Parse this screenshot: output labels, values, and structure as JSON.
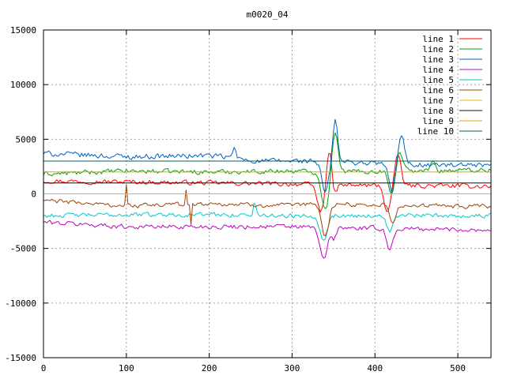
{
  "chart_data": {
    "type": "line",
    "title": "m0020_04",
    "xlabel": "",
    "ylabel": "",
    "xlim": [
      0,
      540
    ],
    "ylim": [
      -15000,
      15000
    ],
    "xticks": [
      0,
      100,
      200,
      300,
      400,
      500
    ],
    "yticks": [
      -15000,
      -10000,
      -5000,
      0,
      5000,
      10000,
      15000
    ],
    "grid": true,
    "legend_position": "top-right",
    "series": [
      {
        "name": "line 1",
        "color": "#ff0000",
        "kind": "noisy",
        "base": [
          [
            0,
            1200
          ],
          [
            100,
            1100
          ],
          [
            200,
            1000
          ],
          [
            300,
            900
          ],
          [
            330,
            800
          ],
          [
            540,
            700
          ]
        ],
        "noise": 300,
        "spikes": [
          [
            335,
            -2500,
            6
          ],
          [
            345,
            3500,
            5
          ],
          [
            350,
            -1500,
            4
          ],
          [
            415,
            -2500,
            5
          ],
          [
            428,
            2800,
            5
          ]
        ]
      },
      {
        "name": "line 2",
        "color": "#00a000",
        "kind": "noisy",
        "base": [
          [
            0,
            1800
          ],
          [
            100,
            2100
          ],
          [
            200,
            2000
          ],
          [
            300,
            2100
          ],
          [
            330,
            2000
          ],
          [
            540,
            2200
          ]
        ],
        "noise": 300,
        "spikes": [
          [
            340,
            -3500,
            6
          ],
          [
            352,
            3800,
            5
          ],
          [
            420,
            -2000,
            5
          ],
          [
            430,
            1800,
            5
          ],
          [
            470,
            1000,
            3
          ]
        ]
      },
      {
        "name": "line 3",
        "color": "#0060c0",
        "kind": "noisy",
        "base": [
          [
            0,
            3700
          ],
          [
            100,
            3400
          ],
          [
            200,
            3500
          ],
          [
            260,
            3000
          ],
          [
            330,
            3000
          ],
          [
            400,
            2800
          ],
          [
            540,
            2500
          ]
        ],
        "noise": 350,
        "spikes": [
          [
            230,
            900,
            3
          ],
          [
            340,
            -2800,
            6
          ],
          [
            352,
            4000,
            4
          ],
          [
            420,
            -2500,
            5
          ],
          [
            432,
            2500,
            5
          ]
        ]
      },
      {
        "name": "line 4",
        "color": "#c000c0",
        "kind": "noisy",
        "base": [
          [
            0,
            -2600
          ],
          [
            100,
            -3000
          ],
          [
            200,
            -3000
          ],
          [
            300,
            -3000
          ],
          [
            330,
            -3100
          ],
          [
            540,
            -3300
          ]
        ],
        "noise": 300,
        "spikes": [
          [
            338,
            -3000,
            6
          ],
          [
            350,
            -1000,
            4
          ],
          [
            418,
            -2000,
            5
          ]
        ]
      },
      {
        "name": "line 5",
        "color": "#00c8c8",
        "kind": "noisy",
        "base": [
          [
            0,
            -2000
          ],
          [
            100,
            -1900
          ],
          [
            200,
            -1900
          ],
          [
            300,
            -2000
          ],
          [
            330,
            -2000
          ],
          [
            540,
            -2000
          ]
        ],
        "noise": 280,
        "spikes": [
          [
            255,
            1300,
            2
          ],
          [
            338,
            -2200,
            6
          ],
          [
            418,
            -1500,
            5
          ]
        ]
      },
      {
        "name": "line 6",
        "color": "#a04000",
        "kind": "noisy",
        "base": [
          [
            0,
            -600
          ],
          [
            100,
            -1100
          ],
          [
            200,
            -900
          ],
          [
            300,
            -1100
          ],
          [
            330,
            -900
          ],
          [
            540,
            -1200
          ]
        ],
        "noise": 280,
        "spikes": [
          [
            100,
            1800,
            1
          ],
          [
            172,
            1500,
            1
          ],
          [
            178,
            -2000,
            1
          ],
          [
            340,
            -3000,
            6
          ],
          [
            422,
            -1800,
            5
          ]
        ]
      },
      {
        "name": "line 7",
        "color": "#e0c000",
        "kind": "flat",
        "y": 0
      },
      {
        "name": "line 8",
        "color": "#101010",
        "kind": "flat",
        "y": 1000
      },
      {
        "name": "line 9",
        "color": "#f0a000",
        "kind": "flat",
        "y": 2000
      },
      {
        "name": "line 10",
        "color": "#006060",
        "kind": "flat",
        "y": 3000
      }
    ]
  }
}
